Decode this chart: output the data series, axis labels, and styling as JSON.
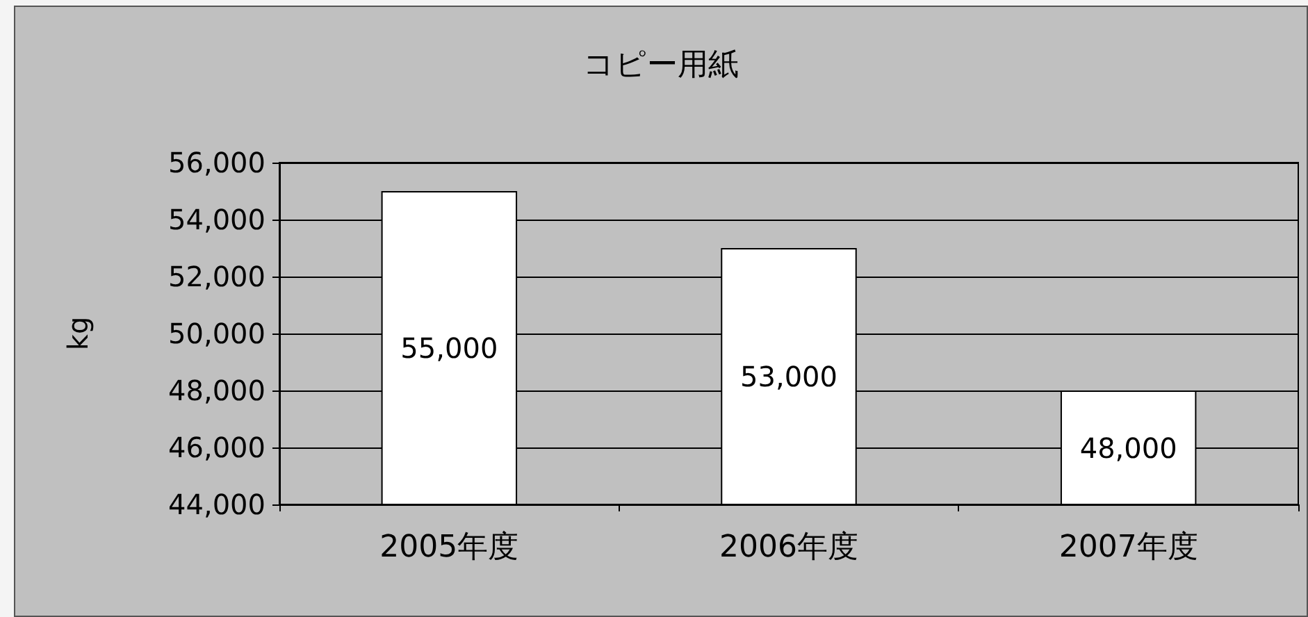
{
  "chart_data": {
    "type": "bar",
    "title": "コピー用紙",
    "ylabel": "kg",
    "categories": [
      "2005年度",
      "2006年度",
      "2007年度"
    ],
    "values": [
      55000,
      53000,
      48000
    ],
    "color": "#ffffff",
    "ylim": [
      44000,
      56000
    ],
    "yticks": [
      {
        "value": 44000,
        "label": "44,000"
      },
      {
        "value": 46000,
        "label": "46,000"
      },
      {
        "value": 48000,
        "label": "48,000"
      },
      {
        "value": 50000,
        "label": "50,000"
      },
      {
        "value": 52000,
        "label": "52,000"
      },
      {
        "value": 54000,
        "label": "54,000"
      },
      {
        "value": 56000,
        "label": "56,000"
      }
    ],
    "value_labels": [
      "55,000",
      "53,000",
      "48,000"
    ],
    "grid": "y"
  }
}
